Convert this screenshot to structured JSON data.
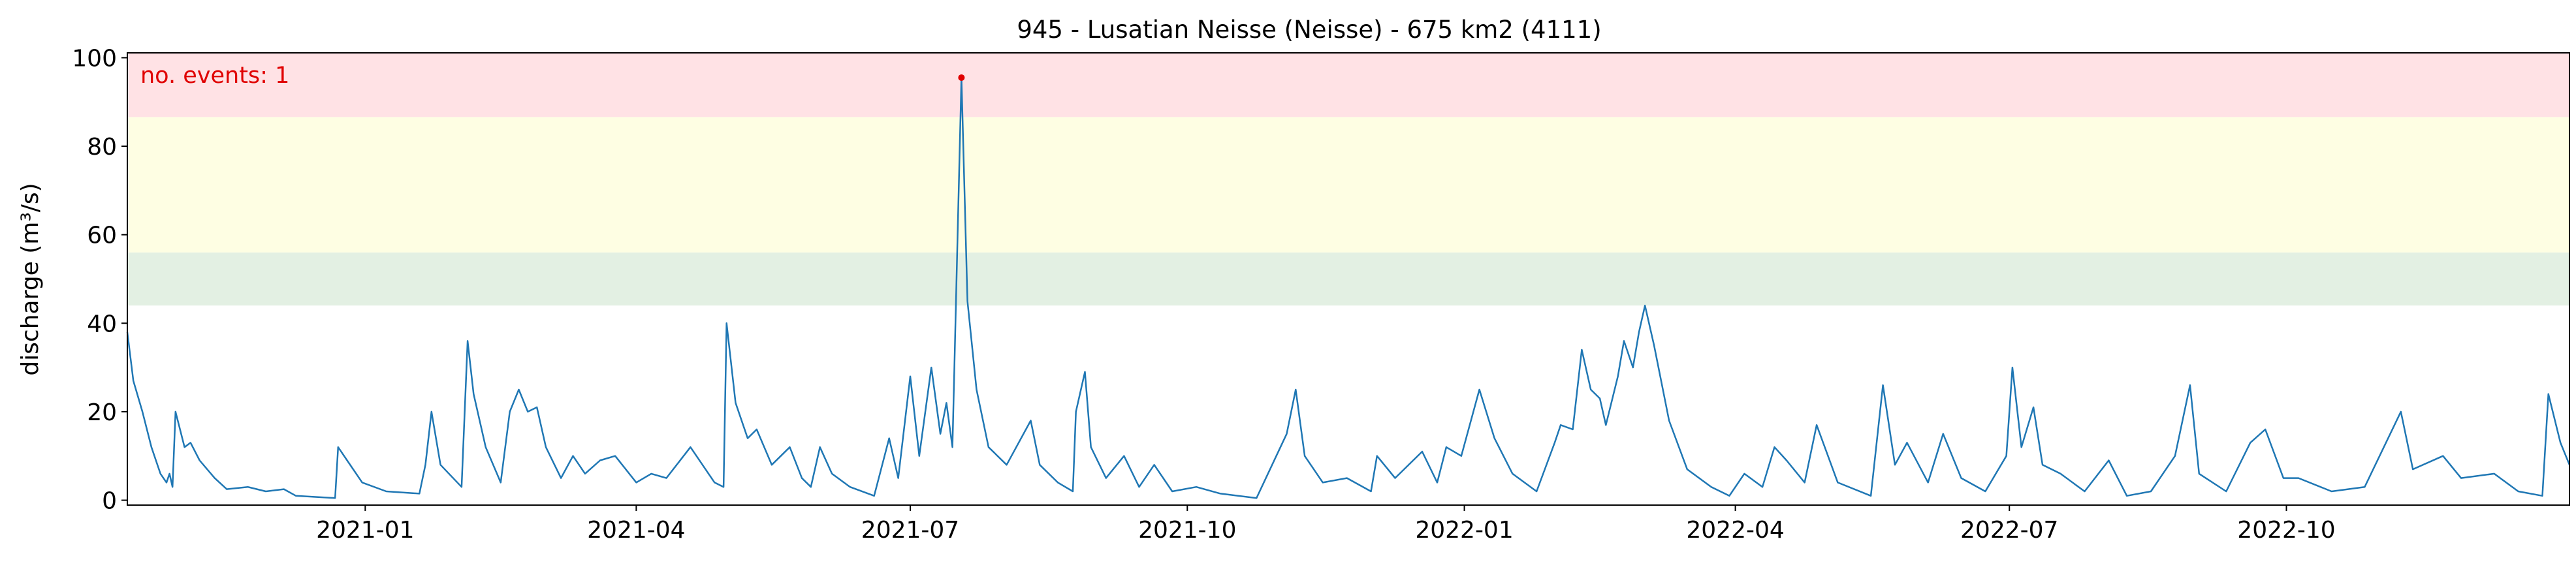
{
  "chart_data": {
    "type": "line",
    "title": "945 - Lusatian Neisse (Neisse) - 675 km2 (4111)",
    "y_label": "discharge (m³/s)",
    "annotation": "no. events: 1",
    "annotation_color": "#e00000",
    "xlim": [
      "2020-10-14",
      "2023-01-03"
    ],
    "xticks": [
      "2021-01",
      "2021-04",
      "2021-07",
      "2021-10",
      "2022-01",
      "2022-04",
      "2022-07",
      "2022-10"
    ],
    "ylim": [
      -1.1,
      101.1
    ],
    "yticks": [
      0,
      20,
      40,
      60,
      80,
      100
    ],
    "bands": [
      {
        "ymin": 44,
        "ymax": 56,
        "color": "#e3f0e3"
      },
      {
        "ymin": 56,
        "ymax": 86.6,
        "color": "#fefee3"
      },
      {
        "ymin": 86.6,
        "ymax": 101.1,
        "color": "#ffe2e5"
      }
    ],
    "events": {
      "color": "#e00000",
      "x": [
        "2021-07-18"
      ],
      "values": [
        95.5
      ]
    },
    "series": [
      {
        "color": "#1f77b4",
        "x": [
          "2020-10-14",
          "2020-10-16",
          "2020-10-19",
          "2020-10-22",
          "2020-10-25",
          "2020-10-27",
          "2020-10-28",
          "2020-10-29",
          "2020-10-30",
          "2020-11-02",
          "2020-11-04",
          "2020-11-07",
          "2020-11-12",
          "2020-11-16",
          "2020-11-23",
          "2020-11-29",
          "2020-12-05",
          "2020-12-09",
          "2020-12-22",
          "2020-12-23",
          "2020-12-26",
          "2020-12-31",
          "2021-01-08",
          "2021-01-19",
          "2021-01-21",
          "2021-01-23",
          "2021-01-26",
          "2021-02-02",
          "2021-02-04",
          "2021-02-06",
          "2021-02-10",
          "2021-02-15",
          "2021-02-18",
          "2021-02-21",
          "2021-02-24",
          "2021-02-27",
          "2021-03-02",
          "2021-03-07",
          "2021-03-11",
          "2021-03-15",
          "2021-03-20",
          "2021-03-25",
          "2021-04-01",
          "2021-04-06",
          "2021-04-11",
          "2021-04-19",
          "2021-04-27",
          "2021-04-30",
          "2021-05-01",
          "2021-05-04",
          "2021-05-08",
          "2021-05-11",
          "2021-05-16",
          "2021-05-22",
          "2021-05-26",
          "2021-05-29",
          "2021-06-01",
          "2021-06-05",
          "2021-06-11",
          "2021-06-19",
          "2021-06-24",
          "2021-06-27",
          "2021-07-01",
          "2021-07-04",
          "2021-07-08",
          "2021-07-11",
          "2021-07-13",
          "2021-07-15",
          "2021-07-18",
          "2021-07-20",
          "2021-07-23",
          "2021-07-27",
          "2021-08-02",
          "2021-08-10",
          "2021-08-13",
          "2021-08-19",
          "2021-08-24",
          "2021-08-25",
          "2021-08-28",
          "2021-08-30",
          "2021-09-04",
          "2021-09-10",
          "2021-09-15",
          "2021-09-20",
          "2021-09-26",
          "2021-10-04",
          "2021-10-12",
          "2021-10-24",
          "2021-11-03",
          "2021-11-06",
          "2021-11-09",
          "2021-11-15",
          "2021-11-23",
          "2021-12-01",
          "2021-12-03",
          "2021-12-09",
          "2021-12-18",
          "2021-12-23",
          "2021-12-26",
          "2021-12-31",
          "2022-01-06",
          "2022-01-11",
          "2022-01-17",
          "2022-01-25",
          "2022-01-31",
          "2022-02-02",
          "2022-02-06",
          "2022-02-09",
          "2022-02-12",
          "2022-02-15",
          "2022-02-17",
          "2022-02-21",
          "2022-02-23",
          "2022-02-26",
          "2022-02-28",
          "2022-03-02",
          "2022-03-05",
          "2022-03-10",
          "2022-03-16",
          "2022-03-24",
          "2022-03-30",
          "2022-04-04",
          "2022-04-10",
          "2022-04-14",
          "2022-04-18",
          "2022-04-24",
          "2022-04-28",
          "2022-05-05",
          "2022-05-16",
          "2022-05-20",
          "2022-05-24",
          "2022-05-28",
          "2022-06-04",
          "2022-06-09",
          "2022-06-15",
          "2022-06-23",
          "2022-06-30",
          "2022-07-02",
          "2022-07-05",
          "2022-07-09",
          "2022-07-12",
          "2022-07-18",
          "2022-07-26",
          "2022-08-03",
          "2022-08-09",
          "2022-08-17",
          "2022-08-25",
          "2022-08-30",
          "2022-09-02",
          "2022-09-11",
          "2022-09-19",
          "2022-09-24",
          "2022-09-30",
          "2022-10-05",
          "2022-10-16",
          "2022-10-27",
          "2022-11-08",
          "2022-11-12",
          "2022-11-22",
          "2022-11-28",
          "2022-12-09",
          "2022-12-17",
          "2022-12-25",
          "2022-12-27",
          "2022-12-31",
          "2023-01-03"
        ],
        "values": [
          38,
          27,
          20,
          12,
          6,
          4,
          6,
          3,
          20,
          12,
          13,
          9,
          5,
          2.5,
          3,
          2,
          2.5,
          1,
          0.5,
          12,
          9,
          4,
          2,
          1.5,
          8,
          20,
          8,
          3,
          36,
          24,
          12,
          4,
          20,
          25,
          20,
          21,
          12,
          5,
          10,
          6,
          9,
          10,
          4,
          6,
          5,
          12,
          4,
          3,
          40,
          22,
          14,
          16,
          8,
          12,
          5,
          3,
          12,
          6,
          3,
          1,
          14,
          5,
          28,
          10,
          30,
          15,
          22,
          12,
          95.5,
          45,
          25,
          12,
          8,
          18,
          8,
          4,
          2,
          20,
          29,
          12,
          5,
          10,
          3,
          8,
          2,
          3,
          1.5,
          0.5,
          15,
          25,
          10,
          4,
          5,
          2,
          10,
          5,
          11,
          4,
          12,
          10,
          25,
          14,
          6,
          2,
          13,
          17,
          16,
          34,
          25,
          23,
          17,
          28,
          36,
          30,
          38,
          44,
          35,
          18,
          7,
          3,
          1,
          6,
          3,
          12,
          9,
          4,
          17,
          4,
          1,
          26,
          8,
          13,
          4,
          15,
          5,
          2,
          10,
          30,
          12,
          21,
          8,
          6,
          2,
          9,
          1,
          2,
          10,
          26,
          6,
          2,
          13,
          16,
          5,
          5,
          2,
          3,
          20,
          7,
          10,
          5,
          6,
          2,
          1,
          24,
          13,
          8
        ]
      }
    ]
  }
}
